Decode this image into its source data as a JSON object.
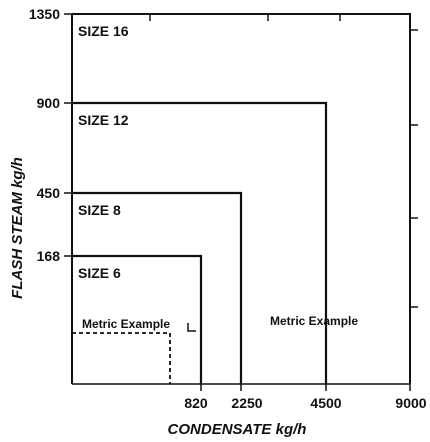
{
  "chart_data": {
    "type": "line",
    "title": "",
    "xlabel": "CONDENSATE kg/h",
    "ylabel": "FLASH STEAM kg/h",
    "grid": false,
    "legend": "none",
    "x_tick_labels": [
      "820",
      "2250",
      "4500",
      "9000"
    ],
    "y_tick_labels": [
      "1350",
      "900",
      "450",
      "168"
    ],
    "boxes": [
      {
        "label": "SIZE 16",
        "condensate_max": 9000,
        "flash_steam_max": 1350
      },
      {
        "label": "SIZE 12",
        "condensate_max": 4500,
        "flash_steam_max": 900
      },
      {
        "label": "SIZE 8",
        "condensate_max": 2250,
        "flash_steam_max": 450
      },
      {
        "label": "SIZE 6",
        "condensate_max": 820,
        "flash_steam_max": 168
      }
    ],
    "annotations": [
      "Metric Example",
      "Metric Example"
    ],
    "line_color": "#111111"
  }
}
